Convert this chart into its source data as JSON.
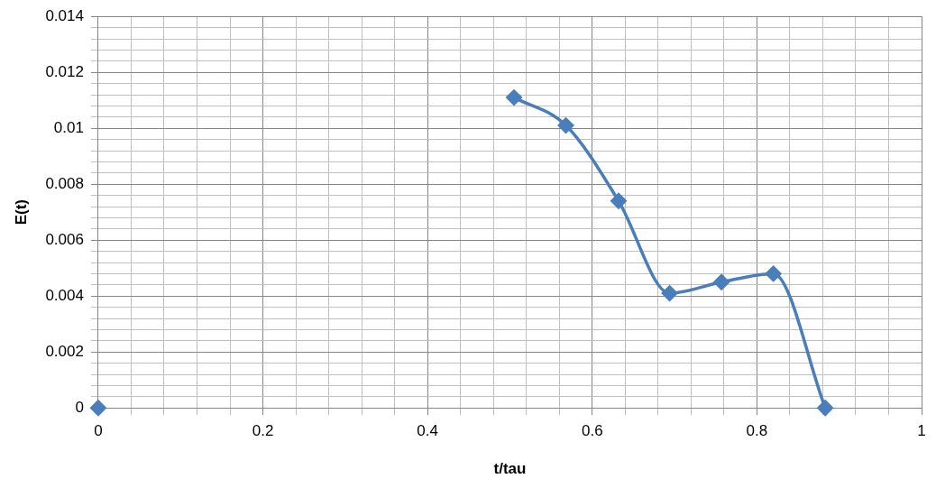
{
  "chart_data": {
    "type": "line",
    "xlabel": "t/tau",
    "ylabel": "E(t)",
    "x": [
      0,
      0.063,
      0.126,
      0.189,
      0.252,
      0.315,
      0.379,
      0.442,
      0.505,
      0.568,
      0.632,
      0.694,
      0.757,
      0.82,
      0.883
    ],
    "series": [
      {
        "color": "#4a7ebb",
        "values": [
          0,
          null,
          null,
          null,
          null,
          null,
          null,
          null,
          0.0111,
          0.0101,
          0.0074,
          0.0041,
          0.0045,
          0.0048,
          0
        ]
      }
    ],
    "xlim": [
      0,
      1
    ],
    "ylim": [
      0,
      0.014
    ],
    "xticks": [
      0,
      {
        "value": 0.04,
        "label": null
      },
      {
        "value": 0.08,
        "label": null
      },
      {
        "value": 0.12,
        "label": null
      },
      {
        "value": 0.16,
        "label": null
      },
      0.2,
      {
        "value": 0.24,
        "label": null
      },
      {
        "value": 0.28,
        "label": null
      },
      {
        "value": 0.32,
        "label": null
      },
      {
        "value": 0.36,
        "label": null
      },
      0.4,
      {
        "value": 0.44,
        "label": null
      },
      {
        "value": 0.48,
        "label": null
      },
      {
        "value": 0.52,
        "label": null
      },
      {
        "value": 0.56,
        "label": null
      },
      0.6,
      {
        "value": 0.64,
        "label": null
      },
      {
        "value": 0.68,
        "label": null
      },
      {
        "value": 0.72,
        "label": null
      },
      {
        "value": 0.76,
        "label": null
      },
      0.8,
      {
        "value": 0.84,
        "label": null
      },
      {
        "value": 0.88,
        "label": null
      },
      {
        "value": 0.92,
        "label": null
      },
      {
        "value": 0.96,
        "label": null
      },
      1
    ],
    "yticks": [
      0,
      {
        "value": 0.0004,
        "label": null
      },
      {
        "value": 0.0008,
        "label": null
      },
      {
        "value": 0.0012,
        "label": null
      },
      {
        "value": 0.0016,
        "label": null
      },
      0.002,
      {
        "value": 0.0024,
        "label": null
      },
      {
        "value": 0.0028,
        "label": null
      },
      {
        "value": 0.0032,
        "label": null
      },
      {
        "value": 0.0036,
        "label": null
      },
      0.004,
      {
        "value": 0.0044,
        "label": null
      },
      {
        "value": 0.0048,
        "label": null
      },
      {
        "value": 0.0052,
        "label": null
      },
      {
        "value": 0.0056,
        "label": null
      },
      0.006,
      {
        "value": 0.0064,
        "label": null
      },
      {
        "value": 0.0068,
        "label": null
      },
      {
        "value": 0.0072,
        "label": null
      },
      {
        "value": 0.0076,
        "label": null
      },
      0.008,
      {
        "value": 0.0084,
        "label": null
      },
      {
        "value": 0.0088,
        "label": null
      },
      {
        "value": 0.0092,
        "label": null
      },
      {
        "value": 0.0096,
        "label": null
      },
      0.01,
      {
        "value": 0.0104,
        "label": null
      },
      {
        "value": 0.0108,
        "label": null
      },
      {
        "value": 0.0112,
        "label": null
      },
      {
        "value": 0.0116,
        "label": null
      },
      0.012,
      {
        "value": 0.0124,
        "label": null
      },
      {
        "value": 0.0128,
        "label": null
      },
      {
        "value": 0.0132,
        "label": null
      },
      {
        "value": 0.0136,
        "label": null
      },
      0.014
    ],
    "grid": true,
    "legend": false,
    "marker": "diamond",
    "line_style": "solid"
  }
}
